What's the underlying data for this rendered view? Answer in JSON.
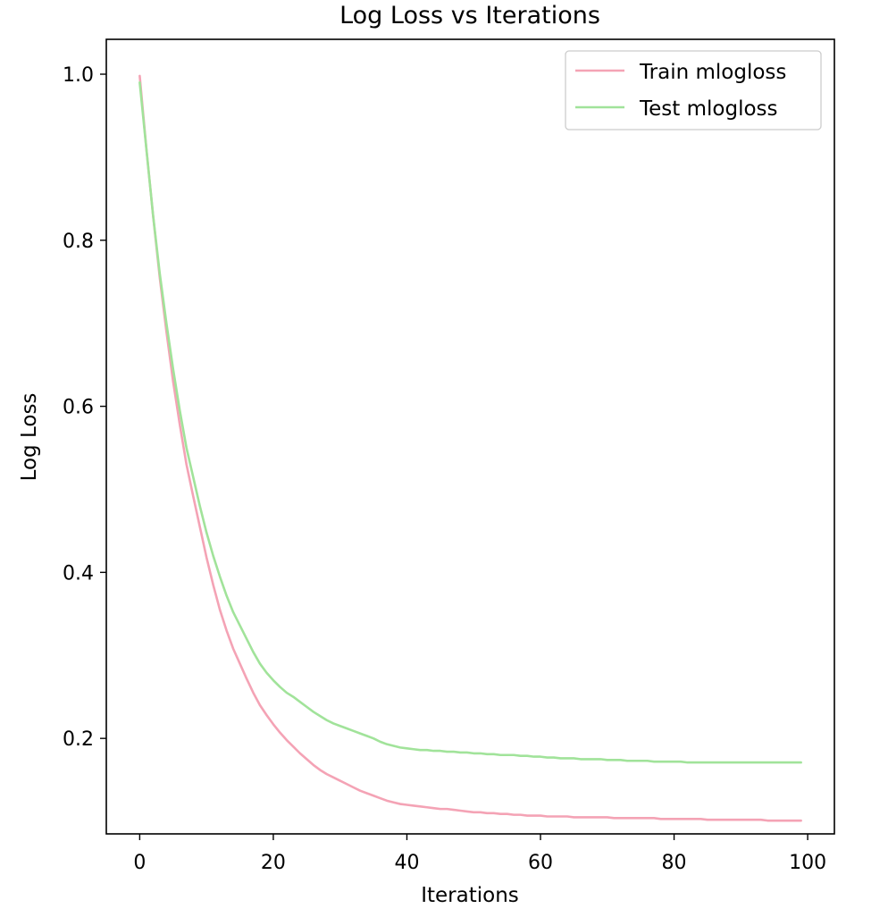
{
  "chart_data": {
    "type": "line",
    "title": "Log Loss vs Iterations",
    "xlabel": "Iterations",
    "ylabel": "Log Loss",
    "xlim": [
      -5,
      104
    ],
    "ylim": [
      0.085,
      1.042
    ],
    "xticks": [
      0,
      20,
      40,
      60,
      80,
      100
    ],
    "yticks": [
      0.2,
      0.4,
      0.6,
      0.8,
      1.0
    ],
    "xtick_labels": [
      "0",
      "20",
      "40",
      "60",
      "80",
      "100"
    ],
    "ytick_labels": [
      "0.2",
      "0.4",
      "0.6",
      "0.8",
      "1.0"
    ],
    "grid": false,
    "legend_position": "top-right",
    "series": [
      {
        "name": "Train mlogloss",
        "color": "#f4a3b5",
        "x": [
          0,
          1,
          2,
          3,
          4,
          5,
          6,
          7,
          8,
          9,
          10,
          11,
          12,
          13,
          14,
          15,
          16,
          17,
          18,
          19,
          20,
          21,
          22,
          23,
          24,
          25,
          26,
          27,
          28,
          29,
          30,
          31,
          32,
          33,
          34,
          35,
          36,
          37,
          38,
          39,
          40,
          41,
          42,
          43,
          44,
          45,
          46,
          47,
          48,
          49,
          50,
          51,
          52,
          53,
          54,
          55,
          56,
          57,
          58,
          59,
          60,
          61,
          62,
          63,
          64,
          65,
          66,
          67,
          68,
          69,
          70,
          71,
          72,
          73,
          74,
          75,
          76,
          77,
          78,
          79,
          80,
          81,
          82,
          83,
          84,
          85,
          86,
          87,
          88,
          89,
          90,
          91,
          92,
          93,
          94,
          95,
          96,
          97,
          98,
          99
        ],
        "y": [
          0.998,
          0.91,
          0.83,
          0.755,
          0.69,
          0.63,
          0.578,
          0.53,
          0.492,
          0.455,
          0.418,
          0.385,
          0.355,
          0.33,
          0.308,
          0.29,
          0.272,
          0.255,
          0.24,
          0.228,
          0.217,
          0.207,
          0.198,
          0.19,
          0.182,
          0.175,
          0.168,
          0.162,
          0.157,
          0.153,
          0.149,
          0.145,
          0.141,
          0.137,
          0.134,
          0.131,
          0.128,
          0.125,
          0.123,
          0.121,
          0.12,
          0.119,
          0.118,
          0.117,
          0.116,
          0.115,
          0.115,
          0.114,
          0.113,
          0.112,
          0.111,
          0.111,
          0.11,
          0.11,
          0.109,
          0.109,
          0.108,
          0.108,
          0.107,
          0.107,
          0.107,
          0.106,
          0.106,
          0.106,
          0.106,
          0.105,
          0.105,
          0.105,
          0.105,
          0.105,
          0.105,
          0.104,
          0.104,
          0.104,
          0.104,
          0.104,
          0.104,
          0.104,
          0.103,
          0.103,
          0.103,
          0.103,
          0.103,
          0.103,
          0.103,
          0.102,
          0.102,
          0.102,
          0.102,
          0.102,
          0.102,
          0.102,
          0.102,
          0.102,
          0.101,
          0.101,
          0.101,
          0.101,
          0.101,
          0.101
        ]
      },
      {
        "name": "Test mlogloss",
        "color": "#a1e39a",
        "x": [
          0,
          1,
          2,
          3,
          4,
          5,
          6,
          7,
          8,
          9,
          10,
          11,
          12,
          13,
          14,
          15,
          16,
          17,
          18,
          19,
          20,
          21,
          22,
          23,
          24,
          25,
          26,
          27,
          28,
          29,
          30,
          31,
          32,
          33,
          34,
          35,
          36,
          37,
          38,
          39,
          40,
          41,
          42,
          43,
          44,
          45,
          46,
          47,
          48,
          49,
          50,
          51,
          52,
          53,
          54,
          55,
          56,
          57,
          58,
          59,
          60,
          61,
          62,
          63,
          64,
          65,
          66,
          67,
          68,
          69,
          70,
          71,
          72,
          73,
          74,
          75,
          76,
          77,
          78,
          79,
          80,
          81,
          82,
          83,
          84,
          85,
          86,
          87,
          88,
          89,
          90,
          91,
          92,
          93,
          94,
          95,
          96,
          97,
          98,
          99
        ],
        "y": [
          0.99,
          0.91,
          0.83,
          0.76,
          0.7,
          0.645,
          0.595,
          0.55,
          0.515,
          0.48,
          0.448,
          0.42,
          0.395,
          0.372,
          0.352,
          0.336,
          0.32,
          0.304,
          0.29,
          0.279,
          0.27,
          0.262,
          0.255,
          0.25,
          0.244,
          0.238,
          0.232,
          0.227,
          0.222,
          0.218,
          0.215,
          0.212,
          0.209,
          0.206,
          0.203,
          0.2,
          0.196,
          0.193,
          0.191,
          0.189,
          0.188,
          0.187,
          0.186,
          0.186,
          0.185,
          0.185,
          0.184,
          0.184,
          0.183,
          0.183,
          0.182,
          0.182,
          0.181,
          0.181,
          0.18,
          0.18,
          0.18,
          0.179,
          0.179,
          0.178,
          0.178,
          0.177,
          0.177,
          0.176,
          0.176,
          0.176,
          0.175,
          0.175,
          0.175,
          0.175,
          0.174,
          0.174,
          0.174,
          0.173,
          0.173,
          0.173,
          0.173,
          0.172,
          0.172,
          0.172,
          0.172,
          0.172,
          0.171,
          0.171,
          0.171,
          0.171,
          0.171,
          0.171,
          0.171,
          0.171,
          0.171,
          0.171,
          0.171,
          0.171,
          0.171,
          0.171,
          0.171,
          0.171,
          0.171,
          0.171
        ]
      }
    ]
  }
}
